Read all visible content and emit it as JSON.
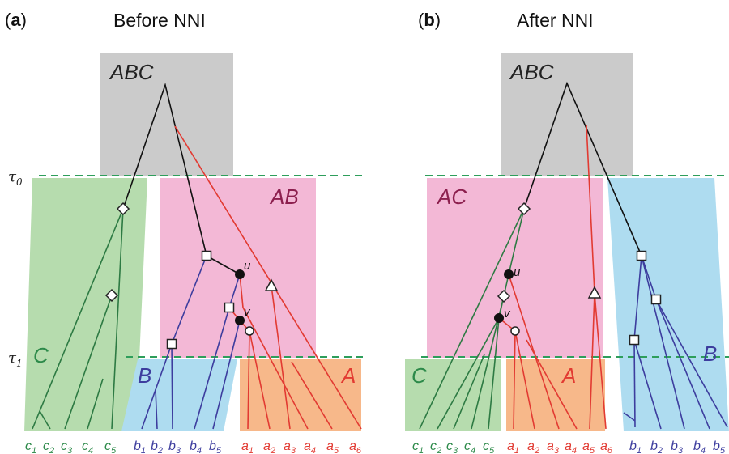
{
  "panels": {
    "a": {
      "letter": "a",
      "title": "Before NNI"
    },
    "b": {
      "letter": "b",
      "title": "After NNI"
    }
  },
  "populations": {
    "root": "ABC",
    "ab": "AB",
    "ac": "AC",
    "a": "A",
    "b": "B",
    "c": "C"
  },
  "time_labels": {
    "tau0": "τ0",
    "tau1": "τ1"
  },
  "node_labels": {
    "u": "u",
    "v": "v"
  },
  "leaves": {
    "c": [
      "c1",
      "c2",
      "c3",
      "c4",
      "c5"
    ],
    "b": [
      "b1",
      "b2",
      "b3",
      "b4",
      "b5"
    ],
    "a": [
      "a1",
      "a2",
      "a3",
      "a4",
      "a5",
      "a6"
    ]
  },
  "colors": {
    "root_box": "#cbcbcb",
    "ancestral_box": "#f3b8d6",
    "pop_a": "#f7b88a",
    "pop_b": "#aedcf0",
    "pop_c": "#b6dcae",
    "green": "#2d7a43",
    "blue": "#3d3d9e",
    "red": "#e23a32",
    "dashed_line": "#2e9e5b"
  }
}
